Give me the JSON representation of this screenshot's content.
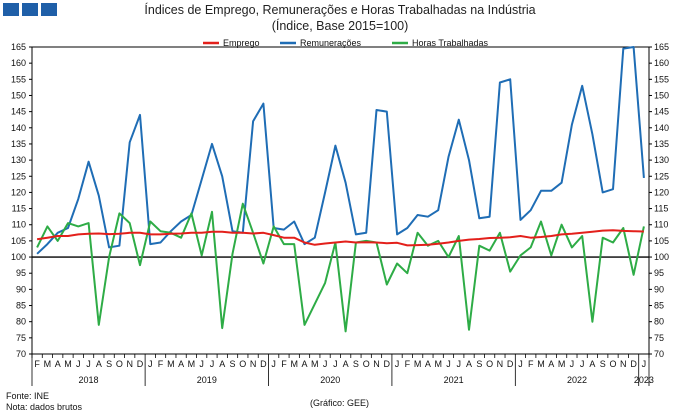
{
  "header": {
    "title_line1": "Índices de Emprego, Remunerações e Horas Trabalhadas na Indústria",
    "title_line2": "(Índice, Base 2015=100)"
  },
  "footer": {
    "source": "Fonte: INE",
    "note": "Nota: dados brutos",
    "credit": "(Gráfico: GEE)"
  },
  "chart_data": {
    "type": "line",
    "ylim": [
      70,
      165
    ],
    "yticks": [
      70,
      75,
      80,
      85,
      90,
      95,
      100,
      105,
      110,
      115,
      120,
      125,
      130,
      135,
      140,
      145,
      150,
      155,
      160,
      165
    ],
    "reference_line": 100,
    "legend_position": "top-center",
    "month_labels": [
      "F",
      "M",
      "A",
      "M",
      "J",
      "J",
      "A",
      "S",
      "O",
      "N",
      "D",
      "J",
      "F",
      "M",
      "A",
      "M",
      "J",
      "J",
      "A",
      "S",
      "O",
      "N",
      "D",
      "J",
      "F",
      "M",
      "A",
      "M",
      "J",
      "J",
      "A",
      "S",
      "O",
      "N",
      "D",
      "J",
      "F",
      "M",
      "A",
      "M",
      "J",
      "J",
      "A",
      "S",
      "O",
      "N",
      "D",
      "J",
      "F",
      "M",
      "A",
      "M",
      "J",
      "J",
      "A",
      "S",
      "O",
      "N",
      "D",
      "J"
    ],
    "year_labels": [
      {
        "label": "2018",
        "start": 0,
        "end": 10
      },
      {
        "label": "2019",
        "start": 11,
        "end": 22
      },
      {
        "label": "2020",
        "start": 23,
        "end": 34
      },
      {
        "label": "2021",
        "start": 35,
        "end": 46
      },
      {
        "label": "2022",
        "start": 47,
        "end": 58
      },
      {
        "label": "2023",
        "start": 59,
        "end": 59
      }
    ],
    "series": [
      {
        "name": "Emprego",
        "color": "#e3201b",
        "values": [
          105.5,
          106,
          106.5,
          106.5,
          107,
          107.2,
          107.3,
          107.1,
          107.2,
          107.5,
          107.5,
          107,
          107,
          107.2,
          107.3,
          107.5,
          107.5,
          107.8,
          107.8,
          107.5,
          107.5,
          107.3,
          107.5,
          106.8,
          106,
          106,
          104.5,
          103.8,
          104.2,
          104.5,
          104.8,
          104.5,
          104.6,
          104.5,
          104.3,
          104.4,
          103.6,
          103.7,
          103.8,
          104.1,
          104.5,
          105,
          105.4,
          105.6,
          105.9,
          106,
          106.1,
          106.5,
          106,
          106.2,
          106.5,
          107,
          107.2,
          107.5,
          107.8,
          108.2,
          108.3,
          108.1,
          108,
          107.9
        ]
      },
      {
        "name": "Remunerações",
        "color": "#1f6db5",
        "values": [
          101,
          104,
          107.5,
          109,
          118,
          129.5,
          119,
          103,
          103.5,
          135.5,
          144,
          104,
          104.5,
          108,
          111,
          113,
          124,
          135,
          125,
          108,
          107.5,
          142,
          147.5,
          109,
          108.5,
          111,
          104,
          106,
          120,
          134.5,
          123,
          107,
          107.5,
          145.5,
          145,
          107,
          109,
          113,
          112.5,
          114.5,
          131,
          142.5,
          130,
          112,
          112.5,
          154,
          155,
          111.5,
          114.5,
          120.5,
          120.5,
          123,
          141,
          153,
          138,
          120,
          121,
          164.5,
          165,
          124.5
        ]
      },
      {
        "name": "Horas Trabalhadas",
        "color": "#2eac46",
        "values": [
          103,
          109.5,
          105,
          110.5,
          109.5,
          110.5,
          79,
          100,
          113.5,
          110.5,
          97.5,
          111,
          108,
          107.5,
          106,
          113.5,
          100.5,
          114,
          78,
          101,
          116.5,
          107.5,
          98,
          109.5,
          104,
          104,
          79,
          85.5,
          92,
          104.5,
          77,
          104.5,
          105,
          104.5,
          91.5,
          98,
          95,
          107.5,
          103.5,
          105,
          100,
          106.5,
          77.5,
          103.5,
          102,
          107.5,
          95.5,
          100.5,
          103,
          111,
          100.5,
          110,
          103,
          106.5,
          80,
          106,
          104.5,
          109,
          94.5,
          109.5
        ]
      }
    ]
  }
}
